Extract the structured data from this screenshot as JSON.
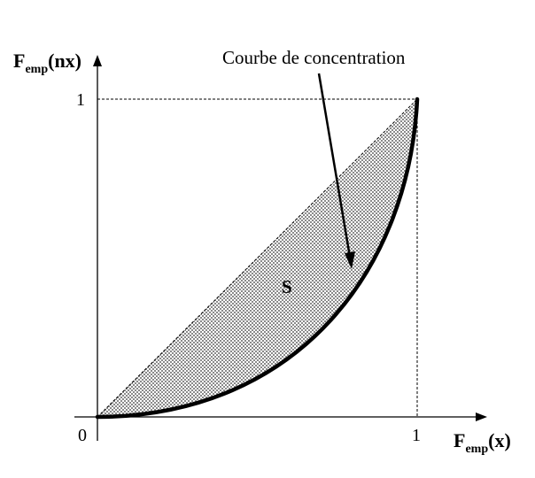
{
  "diagram": {
    "y_axis_label": {
      "main": "F",
      "sub": "emp",
      "tail": "(nx)"
    },
    "x_axis_label": {
      "main": "F",
      "sub": "emp",
      "tail": "(x)"
    },
    "ticks": {
      "origin": "0",
      "x_one": "1",
      "y_one": "1"
    },
    "curve_annotation": "Courbe de concentration",
    "area_label": "S",
    "colors": {
      "lines": "#000000",
      "hatch_fill": "#b5b5b5",
      "hatch_pattern": "#8a8a8a",
      "background": "#ffffff"
    }
  }
}
